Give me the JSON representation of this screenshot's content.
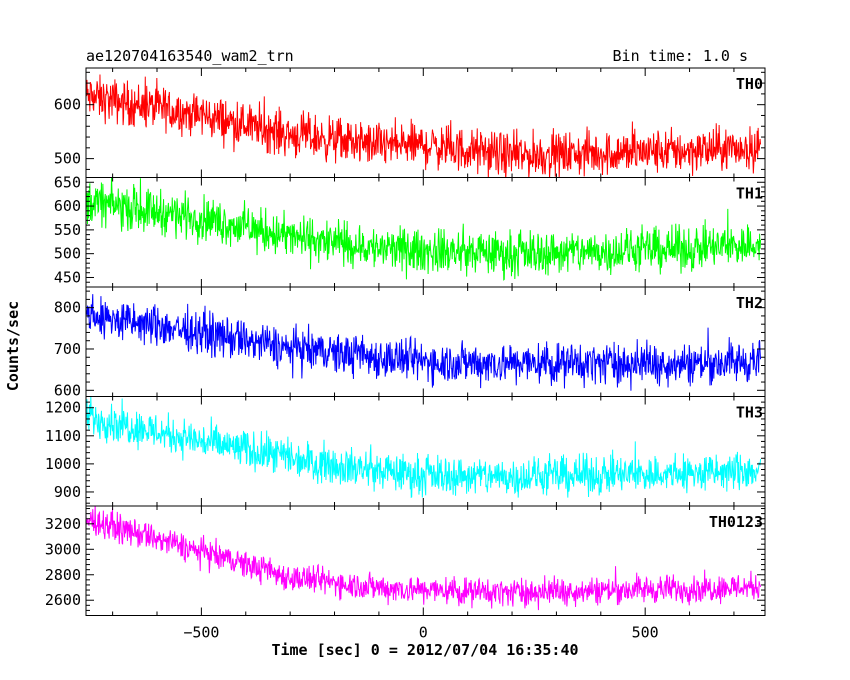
{
  "chart_data": {
    "type": "line",
    "title": "ae120704163540_wam2_trn",
    "bin_time_label": "Bin time: 1.0 s",
    "xlabel": "Time [sec] 0 = 2012/07/04 16:35:40",
    "ylabel": "Counts/sec",
    "xlim": [
      -760,
      770
    ],
    "x_ticks": [
      -500,
      0,
      500
    ],
    "x_range_data": [
      -760,
      760
    ],
    "grid": false,
    "panels": [
      {
        "name": "TH0",
        "color": "#ff0000",
        "ylim": [
          465,
          668
        ],
        "y_ticks": [
          500,
          600
        ],
        "trend_x": [
          -760,
          -500,
          -300,
          -100,
          0,
          200,
          400,
          600,
          760
        ],
        "trend_y": [
          615,
          580,
          545,
          525,
          525,
          505,
          510,
          515,
          520
        ],
        "noise_amplitude": 45
      },
      {
        "name": "TH1",
        "color": "#00ff00",
        "ylim": [
          430,
          660
        ],
        "y_ticks": [
          450,
          500,
          550,
          600,
          650
        ],
        "trend_x": [
          -760,
          -500,
          -300,
          -100,
          0,
          200,
          400,
          600,
          760
        ],
        "trend_y": [
          610,
          575,
          535,
          510,
          505,
          500,
          505,
          510,
          520
        ],
        "noise_amplitude": 50
      },
      {
        "name": "TH2",
        "color": "#0000ff",
        "ylim": [
          585,
          850
        ],
        "y_ticks": [
          600,
          700,
          800
        ],
        "trend_x": [
          -760,
          -500,
          -300,
          -100,
          0,
          200,
          400,
          600,
          760
        ],
        "trend_y": [
          780,
          740,
          700,
          680,
          670,
          665,
          665,
          665,
          670
        ],
        "noise_amplitude": 55
      },
      {
        "name": "TH3",
        "color": "#00ffff",
        "ylim": [
          850,
          1240
        ],
        "y_ticks": [
          900,
          1000,
          1100,
          1200
        ],
        "trend_x": [
          -760,
          -500,
          -300,
          -100,
          0,
          200,
          400,
          600,
          760
        ],
        "trend_y": [
          1170,
          1080,
          1020,
          975,
          960,
          955,
          960,
          965,
          975
        ],
        "noise_amplitude": 75
      },
      {
        "name": "TH0123",
        "color": "#ff00ff",
        "ylim": [
          2480,
          3340
        ],
        "y_ticks": [
          2600,
          2800,
          3000,
          3200
        ],
        "trend_x": [
          -760,
          -500,
          -300,
          -100,
          0,
          200,
          400,
          600,
          760
        ],
        "trend_y": [
          3240,
          2980,
          2780,
          2700,
          2680,
          2660,
          2680,
          2690,
          2710
        ],
        "noise_amplitude": 120
      }
    ]
  }
}
